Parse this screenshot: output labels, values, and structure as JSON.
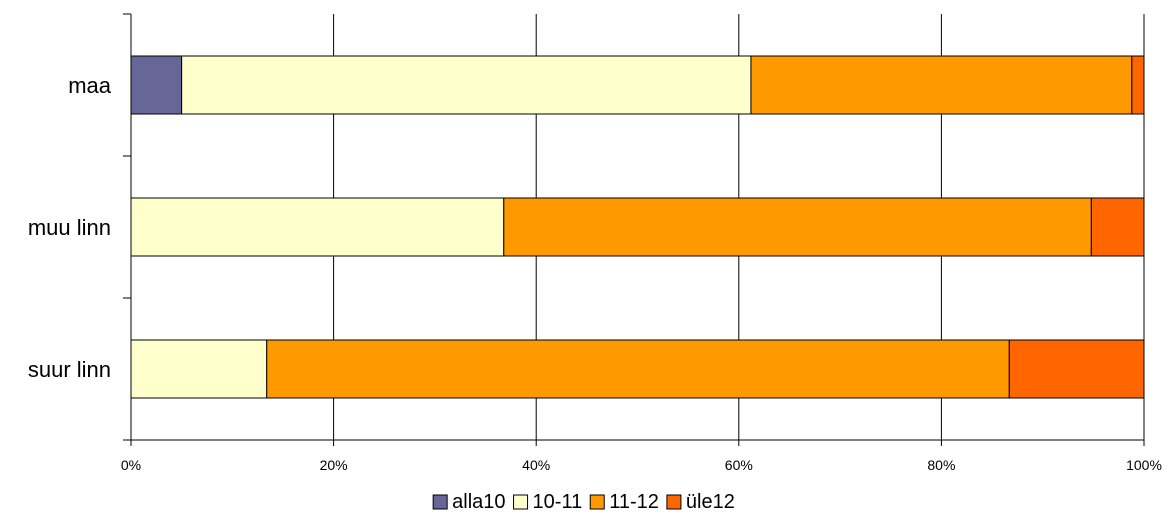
{
  "chart_data": {
    "type": "bar",
    "orientation": "horizontal",
    "stacked": "percent",
    "title": "",
    "xlabel": "",
    "ylabel": "",
    "categories": [
      "maa",
      "muu linn",
      "suur linn"
    ],
    "series": [
      {
        "name": "alla10",
        "color": "#666699",
        "values": [
          5,
          0,
          0
        ]
      },
      {
        "name": "10-11",
        "color": "#FFFFCC",
        "values": [
          56.2,
          36.8,
          13.4
        ]
      },
      {
        "name": "11-12",
        "color": "#FF9900",
        "values": [
          37.6,
          58.0,
          73.3
        ]
      },
      {
        "name": "üle12",
        "color": "#FF6600",
        "values": [
          1.2,
          5.2,
          13.3
        ]
      }
    ],
    "xlim": [
      0,
      100
    ],
    "xticks": [
      "0%",
      "20%",
      "40%",
      "60%",
      "80%",
      "100%"
    ],
    "grid": true,
    "legend_position": "bottom"
  }
}
